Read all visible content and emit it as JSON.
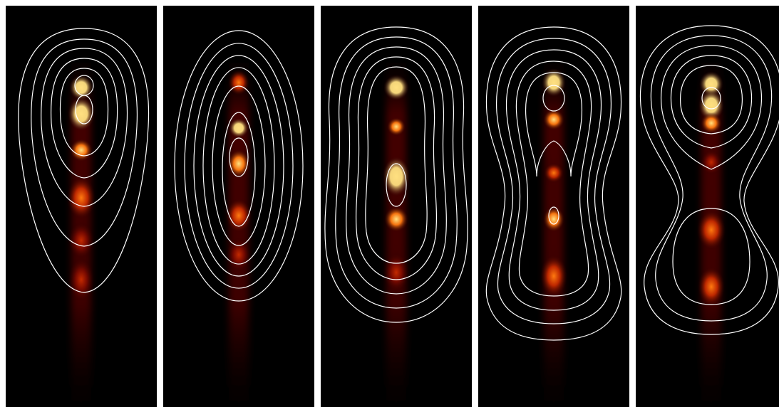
{
  "figure": {
    "panel_count": 5,
    "background_color": "#000000",
    "divider_color": "#ffffff",
    "contour_color": "#ffffff",
    "heat_colors": [
      "#2a0000",
      "#7a0a00",
      "#c42a00",
      "#ff7a10",
      "#ffe080"
    ]
  }
}
